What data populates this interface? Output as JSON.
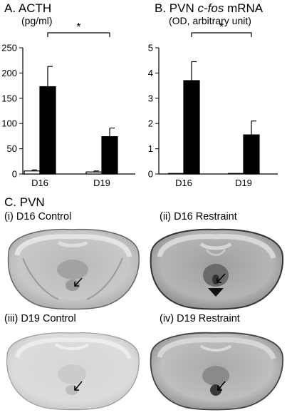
{
  "panel_a": {
    "letter": "A.",
    "title": "ACTH",
    "unit": "(pg/ml)"
  },
  "panel_b": {
    "letter": "B.",
    "title_prefix": "PVN",
    "title_italic": "c-fos",
    "title_suffix": "mRNA",
    "unit": "(OD, arbitrary unit)"
  },
  "panel_c": {
    "letter": "C.",
    "title": "PVN",
    "images": [
      {
        "label": "(i) D16 Control"
      },
      {
        "label": "(ii) D16 Restraint"
      },
      {
        "label": "(iii) D19 Control"
      },
      {
        "label": "(iv) D19 Restraint"
      }
    ]
  },
  "colors": {
    "control_bar": "#ffffff",
    "restraint_bar": "#000000",
    "axis": "#000000"
  },
  "chart_data": [
    {
      "type": "bar",
      "title": "ACTH",
      "ylabel": "(pg/ml)",
      "categories": [
        "D16",
        "D19"
      ],
      "yticks": [
        "0",
        "50",
        "100",
        "150",
        "200",
        "250"
      ],
      "ylim": [
        0,
        250
      ],
      "series": [
        {
          "values": [
            6,
            4
          ],
          "errors": [
            2,
            2
          ],
          "color": "#ffffff"
        },
        {
          "values": [
            173,
            74
          ],
          "errors": [
            40,
            17
          ],
          "color": "#000000"
        }
      ],
      "significance": {
        "between": [
          "D16",
          "D19"
        ],
        "series": 1,
        "label": "*"
      },
      "grid": false
    },
    {
      "type": "bar",
      "title": "PVN c-fos mRNA",
      "ylabel": "(OD, arbitrary unit)",
      "categories": [
        "D16",
        "D19"
      ],
      "yticks": [
        "0",
        "1",
        "2",
        "3",
        "4",
        "5"
      ],
      "ylim": [
        0,
        5
      ],
      "series": [
        {
          "values": [
            0.0,
            0.0
          ],
          "errors": [
            0,
            0
          ],
          "color": "#ffffff"
        },
        {
          "values": [
            3.7,
            1.55
          ],
          "errors": [
            0.75,
            0.55
          ],
          "color": "#000000"
        }
      ],
      "significance": {
        "between": [
          "D16",
          "D19"
        ],
        "series": 1,
        "label": "*"
      },
      "grid": false
    }
  ]
}
